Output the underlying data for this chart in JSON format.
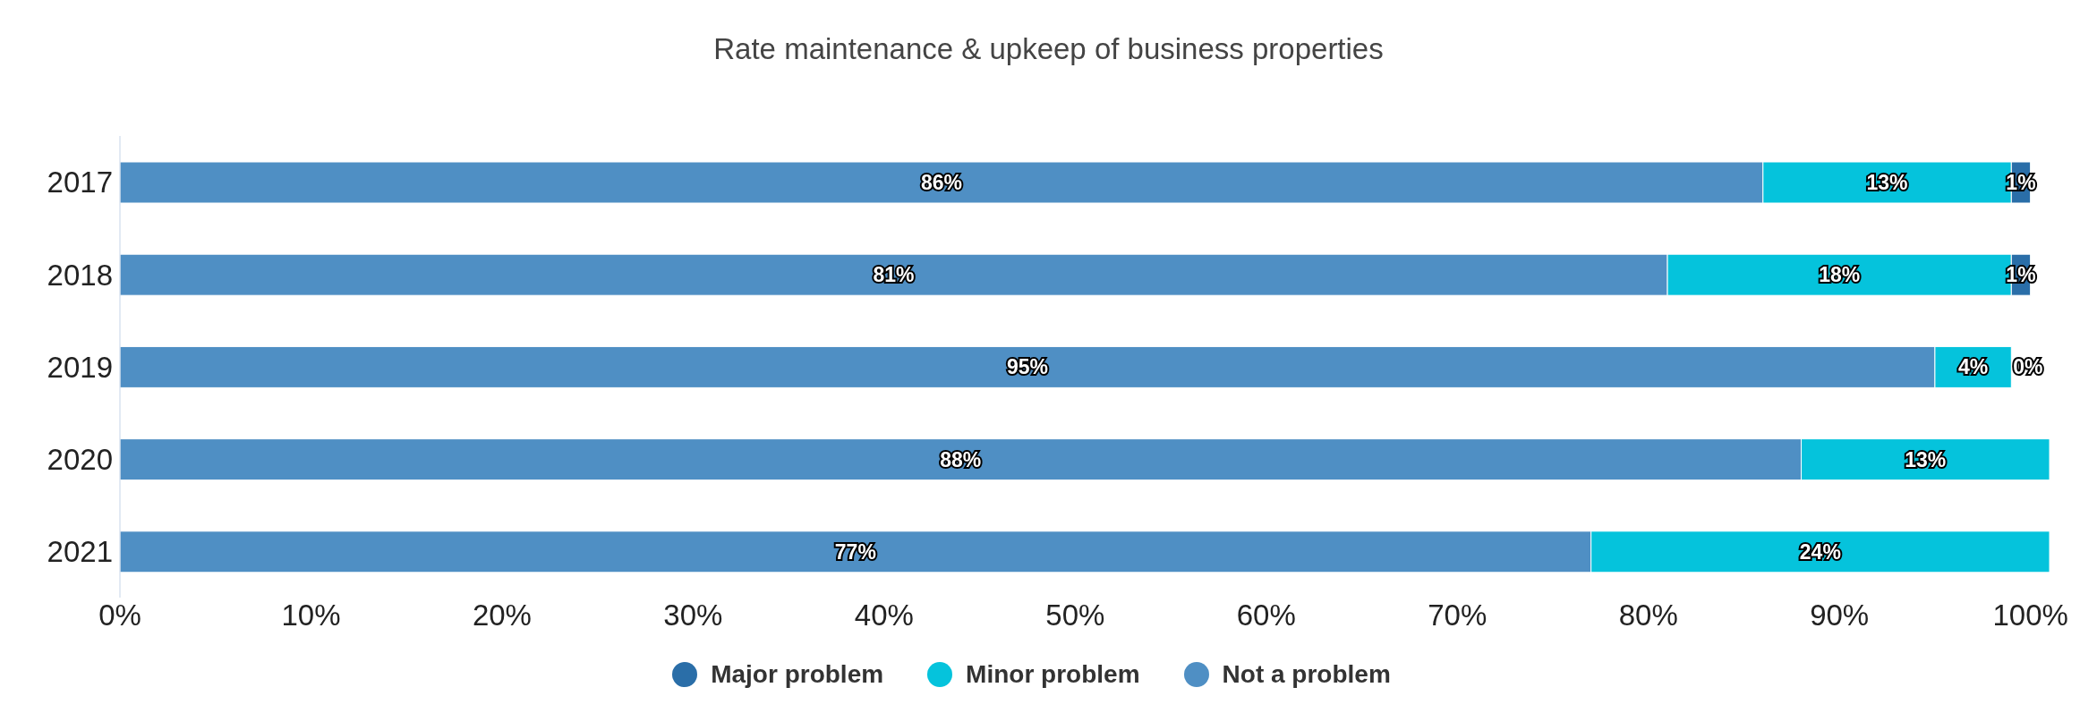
{
  "chart_data": {
    "type": "bar",
    "orientation": "horizontal",
    "stacked": true,
    "title": "Rate maintenance & upkeep of business properties",
    "categories": [
      "2017",
      "2018",
      "2019",
      "2020",
      "2021"
    ],
    "series": [
      {
        "name": "Not a problem",
        "color": "#4f8fc4",
        "values": [
          86,
          81,
          95,
          88,
          77
        ],
        "value_labels": [
          "86%",
          "81%",
          "95%",
          "88%",
          "77%"
        ]
      },
      {
        "name": "Minor problem",
        "color": "#05c3dc",
        "values": [
          13,
          18,
          4,
          13,
          24
        ],
        "value_labels": [
          "13%",
          "18%",
          "4%",
          "13%",
          "24%"
        ]
      },
      {
        "name": "Major problem",
        "color": "#2a6ea8",
        "values": [
          1,
          1,
          0,
          null,
          null
        ],
        "value_labels": [
          "1%",
          "1%",
          "0%",
          null,
          null
        ]
      }
    ],
    "xlim": [
      0,
      101
    ],
    "xticks": [
      {
        "value": 0,
        "label": "0%"
      },
      {
        "value": 10,
        "label": "10%"
      },
      {
        "value": 20,
        "label": "20%"
      },
      {
        "value": 30,
        "label": "30%"
      },
      {
        "value": 40,
        "label": "40%"
      },
      {
        "value": 50,
        "label": "50%"
      },
      {
        "value": 60,
        "label": "60%"
      },
      {
        "value": 70,
        "label": "70%"
      },
      {
        "value": 80,
        "label": "80%"
      },
      {
        "value": 90,
        "label": "90%"
      },
      {
        "value": 100,
        "label": "100%"
      }
    ],
    "grid": false,
    "legend": "bottom"
  }
}
